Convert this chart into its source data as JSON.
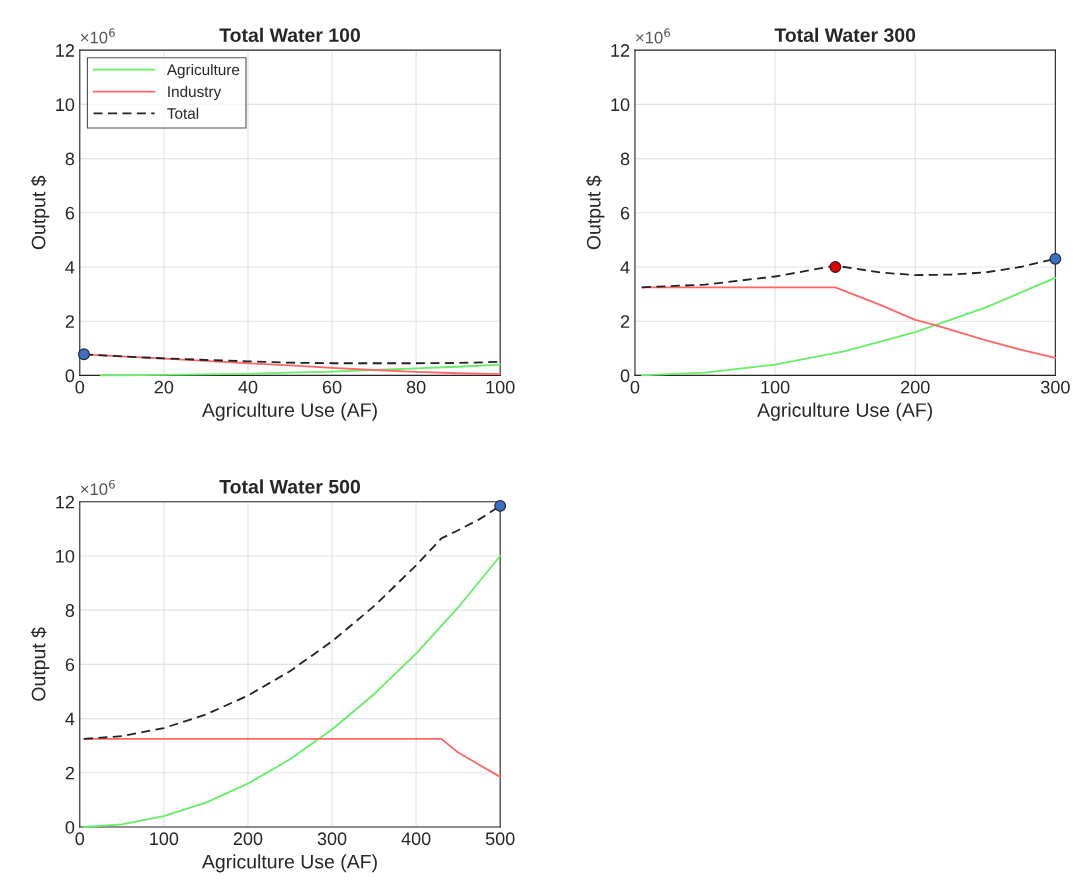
{
  "chart_data": [
    {
      "type": "line",
      "title": "Total Water 100",
      "xlabel": "Agriculture Use (AF)",
      "ylabel": "Output $",
      "annotations": [
        "×10$^{6}$"
      ],
      "xlim": [
        0,
        100
      ],
      "xticks": [
        0,
        20,
        40,
        60,
        80,
        100
      ],
      "ylim": [
        0,
        12
      ],
      "yticks": [
        0,
        2,
        4,
        6,
        8,
        10,
        12
      ],
      "grid": true,
      "legend": "top left",
      "series": [
        {
          "name": "Agriculture",
          "color": "#66ee66",
          "line_style": "solid",
          "x": [
            5,
            10,
            20,
            30,
            40,
            50,
            60,
            70,
            80,
            90,
            100
          ],
          "values": [
            0.0,
            0.0,
            0.02,
            0.04,
            0.06,
            0.1,
            0.14,
            0.2,
            0.26,
            0.32,
            0.4
          ]
        },
        {
          "name": "Industry",
          "color": "#ff6666",
          "line_style": "solid",
          "x": [
            1,
            10,
            20,
            30,
            40,
            50,
            60,
            70,
            80,
            90,
            100
          ],
          "values": [
            0.78,
            0.7,
            0.62,
            0.54,
            0.45,
            0.37,
            0.28,
            0.2,
            0.13,
            0.08,
            0.05
          ]
        },
        {
          "name": "Total",
          "color": "#222222",
          "line_style": "dashed",
          "x": [
            1,
            10,
            20,
            30,
            40,
            50,
            60,
            70,
            80,
            90,
            100
          ],
          "values": [
            0.78,
            0.7,
            0.63,
            0.57,
            0.52,
            0.47,
            0.45,
            0.45,
            0.45,
            0.46,
            0.5
          ]
        },
        {
          "type": "scatter",
          "marker": "circle",
          "color": "#3a6fc4",
          "x": [
            1
          ],
          "values": [
            0.78
          ]
        }
      ]
    },
    {
      "type": "line",
      "title": "Total Water 300",
      "xlabel": "Agriculture Use (AF)",
      "ylabel": "Output $",
      "annotations": [
        "×10$^{6}$"
      ],
      "xlim": [
        0,
        300
      ],
      "xticks": [
        0,
        100,
        200,
        300
      ],
      "ylim": [
        0,
        12
      ],
      "yticks": [
        0,
        2,
        4,
        6,
        8,
        10,
        12
      ],
      "grid": true,
      "series": [
        {
          "color": "#66ee66",
          "line_style": "solid",
          "x": [
            5,
            50,
            100,
            150,
            200,
            250,
            300
          ],
          "values": [
            0.0,
            0.1,
            0.4,
            0.9,
            1.6,
            2.5,
            3.6
          ]
        },
        {
          "color": "#ff6666",
          "line_style": "solid",
          "x": [
            5,
            143,
            175,
            200,
            215,
            250,
            275,
            300
          ],
          "values": [
            3.25,
            3.25,
            2.6,
            2.05,
            1.85,
            1.3,
            0.95,
            0.65
          ]
        },
        {
          "color": "#222222",
          "line_style": "dashed",
          "x": [
            5,
            50,
            100,
            143,
            175,
            200,
            225,
            250,
            275,
            300
          ],
          "values": [
            3.25,
            3.35,
            3.65,
            4.05,
            3.8,
            3.7,
            3.72,
            3.8,
            4.0,
            4.3
          ]
        },
        {
          "type": "scatter",
          "marker": "circle",
          "color": "#e00000",
          "x": [
            143
          ],
          "values": [
            4.0
          ]
        },
        {
          "type": "scatter",
          "marker": "circle",
          "color": "#3a6fc4",
          "x": [
            300
          ],
          "values": [
            4.3
          ]
        }
      ]
    },
    {
      "type": "line",
      "title": "Total Water 500",
      "xlabel": "Agriculture Use (AF)",
      "ylabel": "Output $",
      "annotations": [
        "×10$^{6}$"
      ],
      "xlim": [
        0,
        500
      ],
      "xticks": [
        0,
        100,
        200,
        300,
        400,
        500
      ],
      "ylim": [
        0,
        12
      ],
      "yticks": [
        0,
        2,
        4,
        6,
        8,
        10,
        12
      ],
      "grid": true,
      "series": [
        {
          "color": "#66ee66",
          "line_style": "solid",
          "x": [
            5,
            50,
            100,
            150,
            200,
            250,
            300,
            350,
            400,
            450,
            500
          ],
          "values": [
            0.0,
            0.1,
            0.4,
            0.9,
            1.6,
            2.5,
            3.6,
            4.9,
            6.4,
            8.1,
            10.0
          ]
        },
        {
          "color": "#ff6666",
          "line_style": "solid",
          "x": [
            5,
            430,
            450,
            475,
            500
          ],
          "values": [
            3.25,
            3.25,
            2.75,
            2.3,
            1.85
          ]
        },
        {
          "color": "#222222",
          "line_style": "dashed",
          "x": [
            5,
            50,
            100,
            150,
            200,
            250,
            300,
            350,
            400,
            430,
            450,
            475,
            500
          ],
          "values": [
            3.25,
            3.35,
            3.65,
            4.15,
            4.85,
            5.75,
            6.85,
            8.15,
            9.65,
            10.65,
            10.95,
            11.35,
            11.85
          ]
        },
        {
          "type": "scatter",
          "marker": "circle",
          "color": "#3a6fc4",
          "x": [
            500
          ],
          "values": [
            11.85
          ]
        }
      ]
    }
  ]
}
